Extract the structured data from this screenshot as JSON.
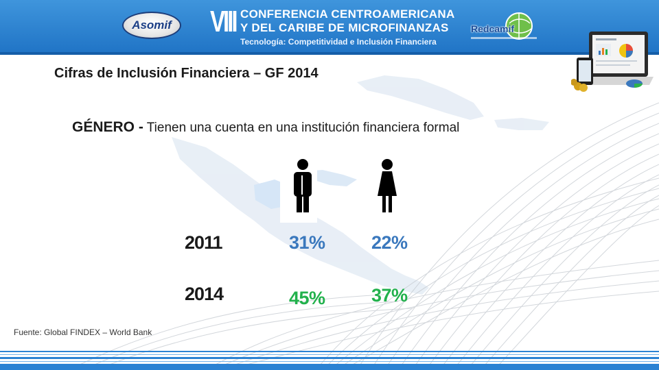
{
  "header": {
    "roman_numeral": "VIII",
    "conference_line1": "CONFERENCIA CENTROAMERICANA",
    "conference_line2": "Y DEL CARIBE DE MICROFINANZAS",
    "conference_line3": "Tecnología: Competitividad e Inclusión Financiera",
    "logo_left": "Asomif",
    "logo_right": "Redcamif",
    "banner_color": "#2a82d3"
  },
  "slide": {
    "title": "Cifras de Inclusión Financiera – GF 2014",
    "subtitle_strong": "GÉNERO -",
    "subtitle_rest": " Tienen una cuenta en una institución financiera formal",
    "icons": [
      "male-person-icon",
      "female-person-icon"
    ],
    "rows": [
      {
        "year": "2011",
        "male": "31%",
        "female": "22%",
        "color": "#3a78bd"
      },
      {
        "year": "2014",
        "male": "45%",
        "female": "37%",
        "color": "#22b14c"
      }
    ],
    "source": "Fuente: Global FINDEX – World Bank"
  }
}
